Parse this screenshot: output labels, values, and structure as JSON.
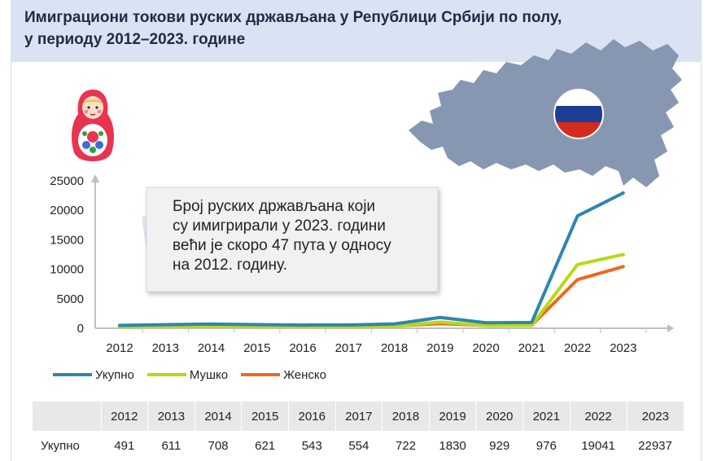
{
  "title_line1": "Имиграциони токови руских држављана у Републици Србији по полу,",
  "title_line2": "у периоду 2012–2023. године",
  "callout": {
    "line1": "Број руских држављана који",
    "line2": "су имигрирали у 2023. години",
    "line3": "већи је скоро 47 пута у односу",
    "line4": "на 2012. годину."
  },
  "colors": {
    "total": "#2e86ab",
    "male": "#b8d817",
    "female": "#ee6a1c",
    "flag_white": "#ffffff",
    "flag_blue": "#1c3f94",
    "flag_red": "#d52b1e",
    "map": "#8797b2"
  },
  "icons": [
    "matryoshka-doll-icon",
    "russia-map-icon",
    "russia-flag-icon"
  ],
  "chart_data": {
    "type": "line",
    "title": "Имиграциони токови руских држављана у Републици Србији по полу, у периоду 2012–2023. године",
    "x": [
      "2012",
      "2013",
      "2014",
      "2015",
      "2016",
      "2017",
      "2018",
      "2019",
      "2020",
      "2021",
      "2022",
      "2023"
    ],
    "ylim": [
      0,
      25000
    ],
    "yticks": [
      0,
      5000,
      10000,
      15000,
      20000,
      25000
    ],
    "grid": false,
    "legend": "bottom",
    "series": [
      {
        "name": "Укупно",
        "values": [
          491,
          611,
          708,
          621,
          543,
          554,
          722,
          1830,
          929,
          976,
          19041,
          22937
        ]
      },
      {
        "name": "Мушко",
        "values": [
          220,
          280,
          320,
          280,
          240,
          250,
          330,
          1050,
          450,
          480,
          10800,
          12500
        ]
      },
      {
        "name": "Женско",
        "values": [
          270,
          330,
          390,
          340,
          300,
          300,
          390,
          780,
          480,
          500,
          8250,
          10450
        ]
      }
    ]
  },
  "table": {
    "row_label": "Укупно",
    "years": [
      "2012",
      "2013",
      "2014",
      "2015",
      "2016",
      "2017",
      "2018",
      "2019",
      "2020",
      "2021",
      "2022",
      "2023"
    ],
    "values": [
      "491",
      "611",
      "708",
      "621",
      "543",
      "554",
      "722",
      "1830",
      "929",
      "976",
      "19041",
      "22937"
    ]
  }
}
